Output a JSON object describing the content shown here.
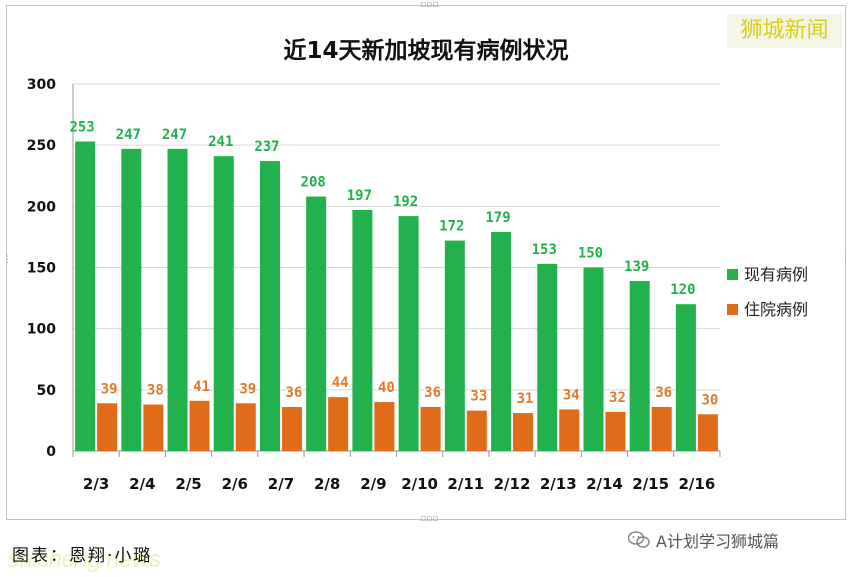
{
  "brand": "狮城新闻",
  "source_credit": "图表：恩翔·小璐",
  "site_watermark": "shicheng.news",
  "wechat_account": "A计划学习狮城篇",
  "chart_data": {
    "type": "bar",
    "title": "近14天新加坡现有病例状况",
    "categories": [
      "2/3",
      "2/4",
      "2/5",
      "2/6",
      "2/7",
      "2/8",
      "2/9",
      "2/10",
      "2/11",
      "2/12",
      "2/13",
      "2/14",
      "2/15",
      "2/16"
    ],
    "series": [
      {
        "name": "现有病例",
        "color": "#22b14c",
        "label_color": "#22b14c",
        "values": [
          253,
          247,
          247,
          241,
          237,
          208,
          197,
          192,
          172,
          179,
          153,
          150,
          139,
          120
        ]
      },
      {
        "name": "住院病例",
        "color": "#e06c1a",
        "label_color": "#e07a2a",
        "values": [
          39,
          38,
          41,
          39,
          36,
          44,
          40,
          36,
          33,
          31,
          34,
          32,
          36,
          30
        ]
      }
    ],
    "ylim": [
      0,
      300
    ],
    "yticks": [
      0,
      50,
      100,
      150,
      200,
      250,
      300
    ],
    "grid": true,
    "legend_position": "right"
  }
}
